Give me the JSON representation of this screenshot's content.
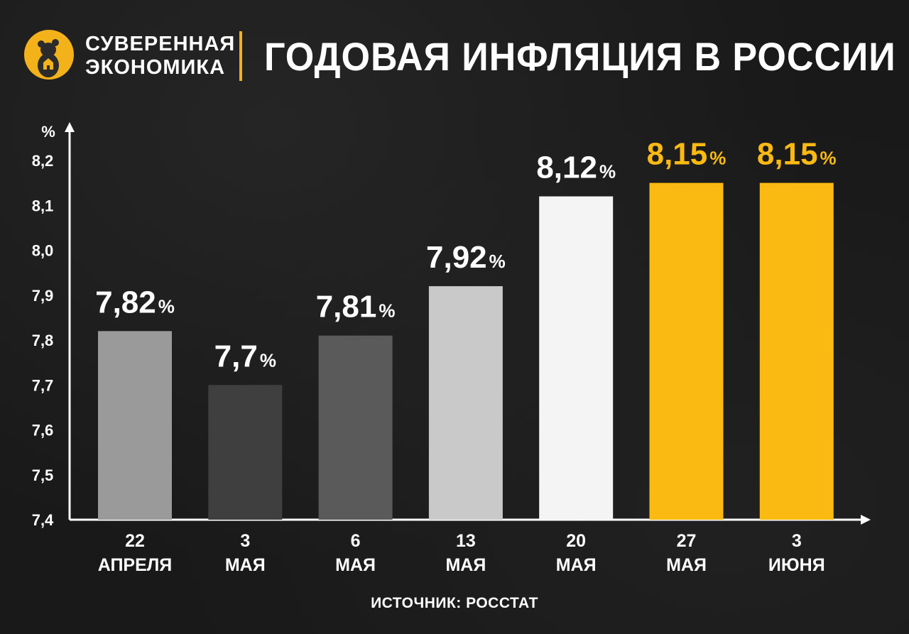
{
  "brand": {
    "line1": "СУВЕРЕННАЯ",
    "line2": "ЭКОНОМИКА",
    "logo_icon": "bear-icon",
    "accent": "#f3b21a"
  },
  "title": "ГОДОВАЯ ИНФЛЯЦИЯ В РОССИИ",
  "source": "ИСТОЧНИК: РОССТАТ",
  "chart_data": {
    "type": "bar",
    "title": "ГОДОВАЯ ИНФЛЯЦИЯ В РОССИИ",
    "xlabel": "",
    "ylabel": "%",
    "ylim": [
      7.4,
      8.2
    ],
    "yticks": [
      "7,4",
      "7,5",
      "7,6",
      "7,7",
      "7,8",
      "7,9",
      "8,0",
      "8,1",
      "8,2"
    ],
    "ytick_values": [
      7.4,
      7.5,
      7.6,
      7.7,
      7.8,
      7.9,
      8.0,
      8.1,
      8.2
    ],
    "grid": false,
    "categories": [
      [
        "22",
        "АПРЕЛЯ"
      ],
      [
        "3",
        "МАЯ"
      ],
      [
        "6",
        "МАЯ"
      ],
      [
        "13",
        "МАЯ"
      ],
      [
        "20",
        "МАЯ"
      ],
      [
        "27",
        "МАЯ"
      ],
      [
        "3",
        "ИЮНЯ"
      ]
    ],
    "values": [
      7.82,
      7.7,
      7.81,
      7.92,
      8.12,
      8.15,
      8.15
    ],
    "value_labels": [
      "7,82",
      "7,7",
      "7,81",
      "7,92",
      "8,12",
      "8,15",
      "8,15"
    ],
    "value_suffix": "%",
    "bar_colors": [
      "#9a9a9a",
      "#3f3f3f",
      "#5a5a5a",
      "#c9c9c9",
      "#f4f4f4",
      "#fbba12",
      "#fbba12"
    ],
    "label_colors": [
      "#ffffff",
      "#ffffff",
      "#ffffff",
      "#ffffff",
      "#ffffff",
      "#fbba12",
      "#fbba12"
    ]
  }
}
